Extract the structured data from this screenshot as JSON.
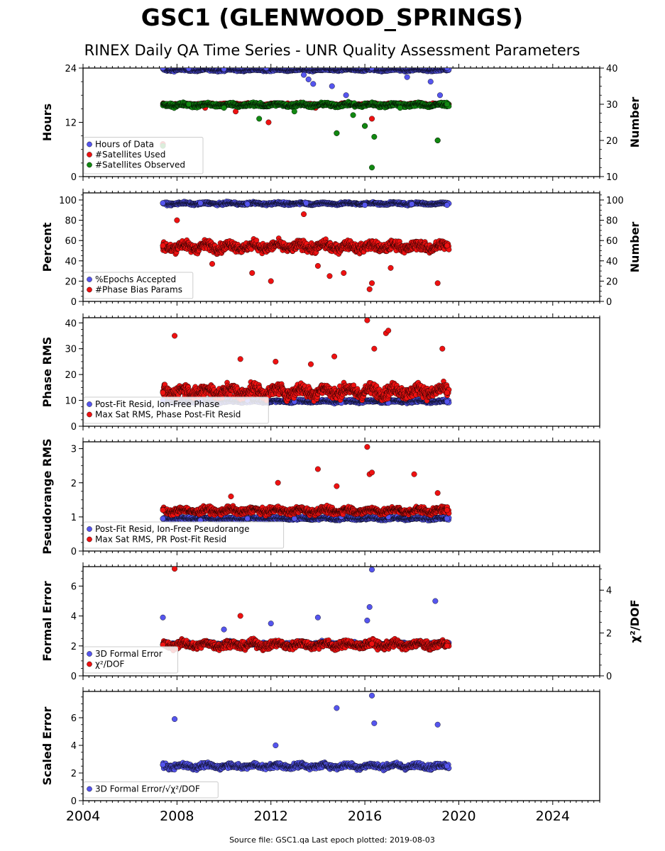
{
  "page": {
    "title": "GSC1 (GLENWOOD_SPRINGS)",
    "subtitle": "RINEX Daily QA Time Series - UNR Quality Assessment Parameters",
    "footer": "Source file: GSC1.qa Last epoch plotted: 2019-08-03"
  },
  "colors": {
    "blue": "#5555ee",
    "red": "#ee1111",
    "green": "#118811",
    "edge": "#000000"
  },
  "chart_data": [
    {
      "id": "hours",
      "type": "scatter",
      "xlim": [
        2004,
        2026
      ],
      "x_ticks": [
        "2004",
        "2008",
        "2012",
        "2016",
        "2020",
        "2024"
      ],
      "ylabel": "Hours",
      "ylim": [
        0,
        24
      ],
      "y_ticks": [
        "0",
        "12",
        "24"
      ],
      "y2label": "Number",
      "y2lim": [
        10,
        40
      ],
      "y2_ticks": [
        "10",
        "20",
        "30",
        "40"
      ],
      "legend": "lower-left",
      "series": [
        {
          "name": "Hours of Data",
          "color": "blue",
          "axis": "left",
          "x": [
            2007.4,
            2008.5,
            2010.0,
            2011.8,
            2013.4,
            2013.6,
            2013.8,
            2014.6,
            2015.2,
            2016.3,
            2016.6,
            2017.8,
            2018.8,
            2019.2,
            2019.5
          ],
          "y": [
            24,
            23.9,
            23.8,
            24,
            22.5,
            21.5,
            20.5,
            20,
            18,
            24,
            16,
            22,
            21,
            18,
            24
          ]
        },
        {
          "name": "#Satellites Used",
          "color": "red",
          "axis": "right",
          "x": [
            2007.4,
            2008.0,
            2009.2,
            2010.5,
            2011.9,
            2013.9,
            2014.8,
            2016.0,
            2016.3,
            2017.1,
            2019.1,
            2019.5
          ],
          "y": [
            19,
            30,
            29,
            28,
            25,
            29,
            22,
            24,
            26,
            30,
            20,
            30
          ]
        },
        {
          "name": "#Satellites Observed",
          "color": "green",
          "axis": "right",
          "x": [
            2007.4,
            2008.5,
            2010.0,
            2011.5,
            2013.0,
            2014.8,
            2015.5,
            2016.0,
            2016.3,
            2016.4,
            2017.5,
            2019.1,
            2019.5
          ],
          "y": [
            18.5,
            30,
            29,
            26,
            28,
            22,
            27,
            24,
            12.5,
            21,
            29,
            20,
            30
          ]
        }
      ]
    },
    {
      "id": "percent",
      "type": "scatter",
      "xlim": [
        2004,
        2026
      ],
      "ylabel": "Percent",
      "ylim": [
        0,
        107
      ],
      "y_ticks": [
        "0",
        "20",
        "40",
        "60",
        "80",
        "100"
      ],
      "y2label": "Number",
      "y2lim": [
        0,
        107
      ],
      "y2_ticks": [
        "0",
        "20",
        "40",
        "60",
        "80",
        "100"
      ],
      "legend": "lower-left",
      "series": [
        {
          "name": "%Epochs Accepted",
          "color": "blue",
          "axis": "left",
          "x": [
            2007.4,
            2009.0,
            2011.0,
            2013.5,
            2016.0,
            2018.0,
            2019.5
          ],
          "y": [
            97,
            97,
            96,
            97,
            95,
            96,
            95
          ]
        },
        {
          "name": "#Phase Bias Params",
          "color": "red",
          "axis": "right",
          "x": [
            2007.4,
            2008.0,
            2009.5,
            2011.2,
            2012.0,
            2013.4,
            2014.0,
            2014.5,
            2015.1,
            2016.2,
            2016.3,
            2017.1,
            2019.1,
            2019.5
          ],
          "y": [
            55,
            80,
            37,
            28,
            20,
            86,
            35,
            25,
            28,
            12,
            18,
            33,
            18,
            55
          ]
        }
      ]
    },
    {
      "id": "phase",
      "type": "scatter",
      "xlim": [
        2004,
        2026
      ],
      "ylabel": "Phase RMS",
      "ylim": [
        0,
        42
      ],
      "y_ticks": [
        "0",
        "10",
        "20",
        "30",
        "40"
      ],
      "legend": "lower-left",
      "series": [
        {
          "name": "Post-Fit Resid, Ion-Free Phase",
          "color": "blue",
          "axis": "left",
          "x": [
            2007.4,
            2009.0,
            2011.0,
            2013.0,
            2015.0,
            2017.0,
            2019.5
          ],
          "y": [
            10,
            10,
            10,
            9.5,
            9,
            9,
            9.5
          ]
        },
        {
          "name": "Max Sat RMS, Phase Post-Fit Resid",
          "color": "red",
          "axis": "left",
          "x": [
            2007.4,
            2007.9,
            2010.7,
            2012.2,
            2013.7,
            2014.7,
            2016.1,
            2016.4,
            2016.9,
            2017.0,
            2019.3,
            2019.5
          ],
          "y": [
            13,
            35,
            26,
            25,
            24,
            27,
            41,
            30,
            36,
            37,
            30,
            13
          ]
        }
      ]
    },
    {
      "id": "pseudorange",
      "type": "scatter",
      "xlim": [
        2004,
        2026
      ],
      "ylabel": "Pseudorange RMS",
      "ylim": [
        0,
        3.2
      ],
      "y_ticks": [
        "0",
        "1",
        "2",
        "3"
      ],
      "legend": "lower-left",
      "series": [
        {
          "name": "Post-Fit Resid, Ion-Free Pseudorange",
          "color": "blue",
          "axis": "left",
          "x": [
            2007.4,
            2009.0,
            2011.0,
            2013.0,
            2015.0,
            2017.0,
            2019.5
          ],
          "y": [
            0.95,
            0.9,
            0.95,
            0.95,
            1.0,
            1.0,
            0.95
          ]
        },
        {
          "name": "Max Sat RMS, PR Post-Fit Resid",
          "color": "red",
          "axis": "left",
          "x": [
            2007.4,
            2010.3,
            2012.3,
            2014.0,
            2014.8,
            2016.1,
            2016.2,
            2016.3,
            2018.1,
            2019.1,
            2019.5
          ],
          "y": [
            1.2,
            1.6,
            2.0,
            2.4,
            1.9,
            3.05,
            2.25,
            2.3,
            2.25,
            1.7,
            1.2
          ]
        }
      ]
    },
    {
      "id": "formal",
      "type": "scatter",
      "xlim": [
        2004,
        2026
      ],
      "ylabel": "Formal Error",
      "ylim": [
        0,
        7.3
      ],
      "y_ticks": [
        "0",
        "2",
        "4",
        "6"
      ],
      "y2label": "χ²/DOF",
      "y2lim": [
        0,
        5.1
      ],
      "y2_ticks": [
        "0",
        "2",
        "4"
      ],
      "legend": "lower-left",
      "series": [
        {
          "name": "3D Formal Error",
          "color": "blue",
          "axis": "left",
          "x": [
            2007.4,
            2010.0,
            2012.0,
            2014.0,
            2016.1,
            2016.2,
            2016.3,
            2019.0,
            2019.5
          ],
          "y": [
            3.9,
            3.1,
            3.5,
            3.9,
            3.7,
            4.6,
            7.1,
            5.0,
            2.2
          ]
        },
        {
          "name": "χ²/DOF",
          "color": "red",
          "axis": "right",
          "x": [
            2007.4,
            2007.9,
            2010.7,
            2016.3,
            2019.5
          ],
          "y": [
            1.45,
            5.0,
            2.8,
            1.5,
            1.4
          ]
        }
      ]
    },
    {
      "id": "scaled",
      "type": "scatter",
      "xlim": [
        2004,
        2026
      ],
      "ylabel": "Scaled Error",
      "ylim": [
        0,
        7.9
      ],
      "y_ticks": [
        "0",
        "2",
        "4",
        "6"
      ],
      "x_ticks": [
        "2004",
        "2008",
        "2012",
        "2016",
        "2020",
        "2024"
      ],
      "legend": "lower-left",
      "series": [
        {
          "name": "3D Formal Error/√χ²/DOF",
          "color": "blue",
          "axis": "left",
          "x": [
            2007.4,
            2007.9,
            2012.2,
            2014.8,
            2016.3,
            2016.4,
            2019.1,
            2019.5
          ],
          "y": [
            2.6,
            5.9,
            4.0,
            6.7,
            7.6,
            5.6,
            5.5,
            2.5
          ]
        }
      ]
    }
  ]
}
